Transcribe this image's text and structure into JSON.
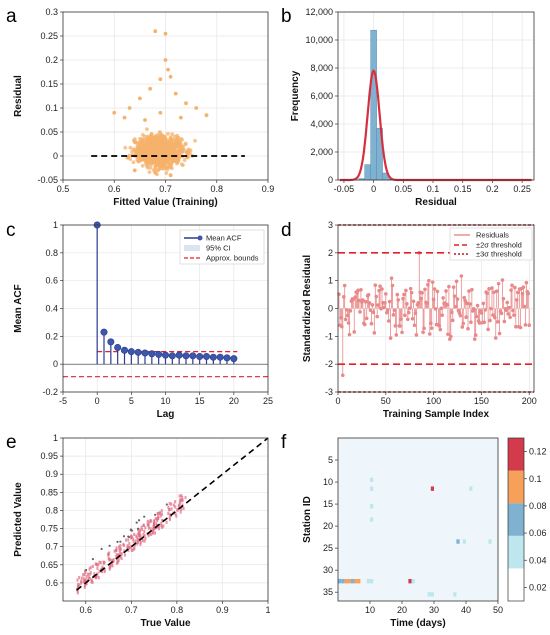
{
  "panel_labels": [
    "a",
    "b",
    "c",
    "d",
    "e",
    "f"
  ],
  "chart_data": [
    {
      "panel": "a",
      "type": "scatter",
      "xlabel": "Fitted Value (Training)",
      "ylabel": "Residual",
      "xlim": [
        0.5,
        0.9
      ],
      "ylim": [
        -0.05,
        0.3
      ],
      "xticks": [
        "0.5",
        "0.6",
        "0.7",
        "0.8",
        "0.9"
      ],
      "yticks": [
        "-0.05",
        "0",
        "0.05",
        "0.1",
        "0.15",
        "0.2",
        "0.25",
        "0.3"
      ],
      "point_color": "#f6b26b",
      "reference_line": {
        "y": 0,
        "x_range": [
          0.555,
          0.855
        ],
        "style": "dashed",
        "color": "#000000"
      },
      "cloud": {
        "x_center": 0.69,
        "x_spread": 0.045,
        "y_center": 0.01,
        "y_spread": 0.018,
        "count": 900
      },
      "outliers": [
        {
          "x": 0.68,
          "y": 0.26
        },
        {
          "x": 0.7,
          "y": 0.255
        },
        {
          "x": 0.7,
          "y": 0.2
        },
        {
          "x": 0.705,
          "y": 0.18
        },
        {
          "x": 0.71,
          "y": 0.165
        },
        {
          "x": 0.69,
          "y": 0.16
        },
        {
          "x": 0.67,
          "y": 0.14
        },
        {
          "x": 0.72,
          "y": 0.13
        },
        {
          "x": 0.65,
          "y": 0.12
        },
        {
          "x": 0.74,
          "y": 0.11
        },
        {
          "x": 0.63,
          "y": 0.1
        },
        {
          "x": 0.76,
          "y": 0.1
        },
        {
          "x": 0.6,
          "y": 0.09
        },
        {
          "x": 0.78,
          "y": 0.085
        },
        {
          "x": 0.62,
          "y": 0.08
        },
        {
          "x": 0.73,
          "y": 0.08
        },
        {
          "x": 0.66,
          "y": 0.075
        },
        {
          "x": 0.69,
          "y": 0.09
        },
        {
          "x": 0.71,
          "y": -0.04
        },
        {
          "x": 0.68,
          "y": -0.035
        },
        {
          "x": 0.64,
          "y": -0.03
        }
      ]
    },
    {
      "panel": "b",
      "type": "bar",
      "xlabel": "Residual",
      "ylabel": "Frequency",
      "xlim": [
        -0.06,
        0.27
      ],
      "ylim": [
        0,
        12000
      ],
      "xticks": [
        "-0.05",
        "0",
        "0.05",
        "0.1",
        "0.15",
        "0.2",
        "0.25"
      ],
      "yticks": [
        "0",
        "2,000",
        "4,000",
        "6,000",
        "8,000",
        "10,000",
        "12,000"
      ],
      "bar_color": "#7fb2d0",
      "bin_width": 0.01,
      "bins": [
        {
          "x": -0.02,
          "value": 100
        },
        {
          "x": -0.01,
          "value": 1100
        },
        {
          "x": 0.0,
          "value": 10700
        },
        {
          "x": 0.01,
          "value": 3700
        },
        {
          "x": 0.02,
          "value": 500
        },
        {
          "x": 0.03,
          "value": 60
        }
      ],
      "fit_curve": {
        "color": "#d62f3f",
        "mean": 0.0,
        "sd": 0.01,
        "peak": 7800
      }
    },
    {
      "panel": "c",
      "type": "line",
      "xlabel": "Lag",
      "ylabel": "Mean ACF",
      "xlim": [
        -5,
        25
      ],
      "ylim": [
        -0.2,
        1
      ],
      "xticks": [
        "-5",
        "0",
        "5",
        "10",
        "15",
        "20",
        "25"
      ],
      "yticks": [
        "-0.2",
        "0",
        "0.2",
        "0.4",
        "0.6",
        "0.8",
        "1"
      ],
      "legend": [
        "Mean ACF",
        "95% CI",
        "Approx. bounds"
      ],
      "legend_position": "top-right",
      "stem_color": "#2b3a8f",
      "lags": [
        0,
        1,
        2,
        3,
        4,
        5,
        6,
        7,
        8,
        9,
        10,
        11,
        12,
        13,
        14,
        15,
        16,
        17,
        18,
        19,
        20
      ],
      "values": [
        1.0,
        0.23,
        0.16,
        0.12,
        0.1,
        0.09,
        0.085,
        0.08,
        0.075,
        0.07,
        0.065,
        0.06,
        0.065,
        0.06,
        0.06,
        0.055,
        0.055,
        0.05,
        0.05,
        0.045,
        0.04
      ],
      "bounds": [
        0.09,
        -0.09
      ]
    },
    {
      "panel": "d",
      "type": "line",
      "xlabel": "Training Sample Index",
      "ylabel": "Standardized Residual",
      "xlim": [
        0,
        205
      ],
      "ylim": [
        -3,
        3
      ],
      "xticks": [
        "0",
        "50",
        "100",
        "150",
        "200"
      ],
      "yticks": [
        "-3",
        "-2",
        "-1",
        "0",
        "1",
        "2",
        "3"
      ],
      "legend": [
        "Residuals",
        "±2σ threshold",
        "±3σ threshold"
      ],
      "legend_position": "top-right",
      "series_color": "#e8898a",
      "thresholds": [
        2,
        -2,
        3,
        -3
      ],
      "n_points": 200,
      "highlighted": [
        {
          "index": 5,
          "value": -2.4
        },
        {
          "index": 85,
          "value": 2.0
        }
      ]
    },
    {
      "panel": "e",
      "type": "scatter",
      "xlabel": "True Value",
      "ylabel": "Predicted Value",
      "xlim": [
        0.55,
        1.0
      ],
      "ylim": [
        0.55,
        1.0
      ],
      "xticks": [
        "0.6",
        "0.7",
        "0.8",
        "0.9",
        "1"
      ],
      "yticks": [
        "0.6",
        "0.65",
        "0.7",
        "0.75",
        "0.8",
        "0.85",
        "0.9",
        "0.95",
        "1"
      ],
      "reference_line": {
        "from": [
          0.58,
          0.58
        ],
        "to": [
          1.0,
          1.0
        ],
        "style": "dashed",
        "color": "#000000"
      },
      "point_color": "#e06b82",
      "points_range": [
        0.58,
        0.82
      ]
    },
    {
      "panel": "f",
      "type": "heatmap",
      "xlabel": "Time (days)",
      "ylabel": "Station ID",
      "xlim": [
        0,
        50
      ],
      "ylim": [
        37,
        0
      ],
      "xticks": [
        "10",
        "20",
        "30",
        "40",
        "50"
      ],
      "yticks": [
        "5",
        "10",
        "15",
        "20",
        "25",
        "30",
        "35"
      ],
      "colorbar_ticks": [
        "0.02",
        "0.04",
        "0.06",
        "0.08",
        "0.1",
        "0.12"
      ],
      "colorbar_range": [
        0.01,
        0.13
      ],
      "colorbar_colors": [
        "#ffffff",
        "#bde6ef",
        "#7fb2d0",
        "#f6a05a",
        "#d33a4b"
      ],
      "background_value": 0.015,
      "cells": [
        {
          "day": 11,
          "station": 10,
          "value": 0.04
        },
        {
          "day": 11,
          "station": 12,
          "value": 0.04
        },
        {
          "day": 11,
          "station": 16,
          "value": 0.04
        },
        {
          "day": 11,
          "station": 19,
          "value": 0.04
        },
        {
          "day": 30,
          "station": 12,
          "value": 0.12
        },
        {
          "day": 42,
          "station": 12,
          "value": 0.04
        },
        {
          "day": 38,
          "station": 24,
          "value": 0.07
        },
        {
          "day": 40,
          "station": 24,
          "value": 0.04
        },
        {
          "day": 48,
          "station": 24,
          "value": 0.04
        },
        {
          "day": 1,
          "station": 33,
          "value": 0.07
        },
        {
          "day": 2,
          "station": 33,
          "value": 0.07
        },
        {
          "day": 3,
          "station": 33,
          "value": 0.09
        },
        {
          "day": 4,
          "station": 33,
          "value": 0.09
        },
        {
          "day": 5,
          "station": 33,
          "value": 0.07
        },
        {
          "day": 6,
          "station": 33,
          "value": 0.09
        },
        {
          "day": 7,
          "station": 33,
          "value": 0.09
        },
        {
          "day": 10,
          "station": 33,
          "value": 0.04
        },
        {
          "day": 11,
          "station": 33,
          "value": 0.04
        },
        {
          "day": 23,
          "station": 33,
          "value": 0.12
        },
        {
          "day": 24,
          "station": 33,
          "value": 0.04
        },
        {
          "day": 29,
          "station": 36,
          "value": 0.04
        },
        {
          "day": 30,
          "station": 36,
          "value": 0.04
        },
        {
          "day": 37,
          "station": 36,
          "value": 0.04
        }
      ]
    }
  ]
}
